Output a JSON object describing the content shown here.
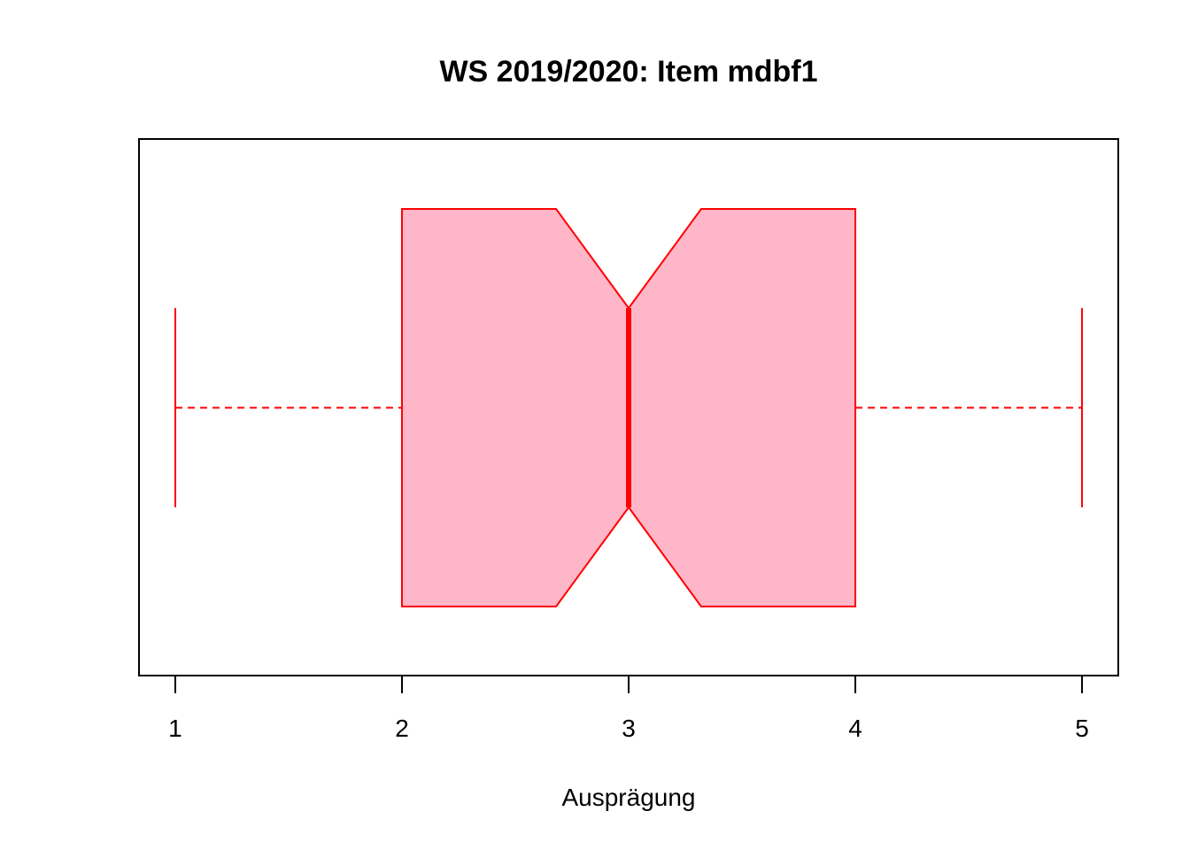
{
  "chart_data": {
    "type": "boxplot",
    "orientation": "horizontal",
    "notched": true,
    "title": "WS 2019/2020: Item mdbf1",
    "xlabel": "Ausprägung",
    "ylabel": "",
    "x_ticks": [
      "1",
      "2",
      "3",
      "4",
      "5"
    ],
    "x_tick_values": [
      1,
      2,
      3,
      4,
      5
    ],
    "xlim": [
      0.84,
      5.16
    ],
    "box": {
      "whisker_low": 1,
      "q1": 2,
      "median": 3,
      "q3": 4,
      "whisker_high": 5,
      "notch_low": 2.68,
      "notch_high": 3.32
    },
    "grid": false,
    "legend": "none",
    "colors": {
      "box_fill": "#FFB6C8",
      "box_stroke": "#FF0000",
      "axis": "#000000"
    }
  }
}
